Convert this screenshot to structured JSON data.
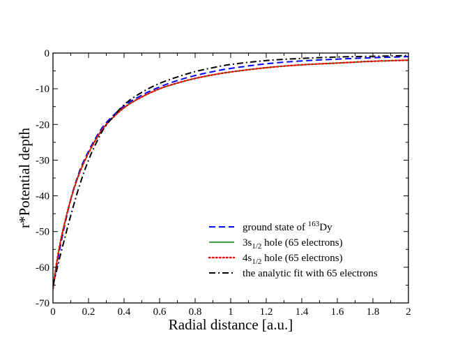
{
  "chart_data": {
    "type": "line",
    "title": "",
    "xlabel": "Radial distance [a.u.]",
    "ylabel": "r*Potential  depth",
    "xlim": [
      0,
      2
    ],
    "ylim": [
      -70,
      0
    ],
    "grid": false,
    "legend_position": "bottom-right",
    "x_ticks": [
      0,
      0.2,
      0.4,
      0.6,
      0.8,
      1.0,
      1.2,
      1.4,
      1.6,
      1.8,
      2.0
    ],
    "x_tick_labels": [
      "0",
      "0.2",
      "0.4",
      "0.6",
      "0.8",
      "1",
      "1.2",
      "1.4",
      "1.6",
      "1.8",
      "2"
    ],
    "y_ticks": [
      -70,
      -60,
      -50,
      -40,
      -30,
      -20,
      -10,
      0
    ],
    "y_tick_labels": [
      "-70",
      "-60",
      "-50",
      "-40",
      "-30",
      "-20",
      "-10",
      "0"
    ],
    "x": [
      0,
      0.02,
      0.05,
      0.1,
      0.15,
      0.2,
      0.25,
      0.3,
      0.4,
      0.5,
      0.6,
      0.7,
      0.8,
      0.9,
      1.0,
      1.2,
      1.4,
      1.6,
      1.8,
      2.0
    ],
    "series": [
      {
        "name": "ground state of 163Dy",
        "legend_main": "ground state of ",
        "legend_sup": "163",
        "legend_tail": "Dy",
        "color": "#0000ff",
        "style": "dashed",
        "values": [
          -66,
          -60,
          -52,
          -41,
          -33,
          -27.5,
          -23,
          -19.5,
          -14.8,
          -11.8,
          -9.5,
          -7.7,
          -6.3,
          -5.2,
          -4.3,
          -3.0,
          -2.2,
          -1.7,
          -1.3,
          -1.0
        ]
      },
      {
        "name": "3s1/2 hole (65 electrons)",
        "legend_main": "3s",
        "legend_sub": "1/2",
        "legend_tail": " hole (65 electrons)",
        "color": "#008000",
        "style": "solid",
        "values": [
          -66,
          -59,
          -51,
          -41,
          -33.5,
          -28,
          -23.5,
          -20,
          -15.3,
          -12.3,
          -10.0,
          -8.4,
          -7.1,
          -6.1,
          -5.3,
          -4.1,
          -3.3,
          -2.8,
          -2.3,
          -2.0
        ]
      },
      {
        "name": "4s1/2 hole (65 electrons)",
        "legend_main": "4s",
        "legend_sub": "1/2",
        "legend_tail": " hole (65 electrons)",
        "color": "#ff0000",
        "style": "dotted",
        "values": [
          -66,
          -59,
          -51,
          -41,
          -33.5,
          -28,
          -23.5,
          -20,
          -15.3,
          -12.3,
          -10.0,
          -8.4,
          -7.1,
          -6.1,
          -5.3,
          -4.1,
          -3.3,
          -2.8,
          -2.3,
          -2.0
        ]
      },
      {
        "name": "the analytic fit with 65 electrons",
        "legend_main": "the analytic fit with 65 electrons",
        "color": "#000000",
        "style": "dashdot",
        "values": [
          -65,
          -61,
          -55,
          -45.5,
          -37,
          -30,
          -24.5,
          -20.2,
          -14.5,
          -11.0,
          -8.5,
          -6.7,
          -5.2,
          -4.1,
          -3.2,
          -2.1,
          -1.5,
          -1.1,
          -0.9,
          -0.7
        ]
      }
    ]
  }
}
